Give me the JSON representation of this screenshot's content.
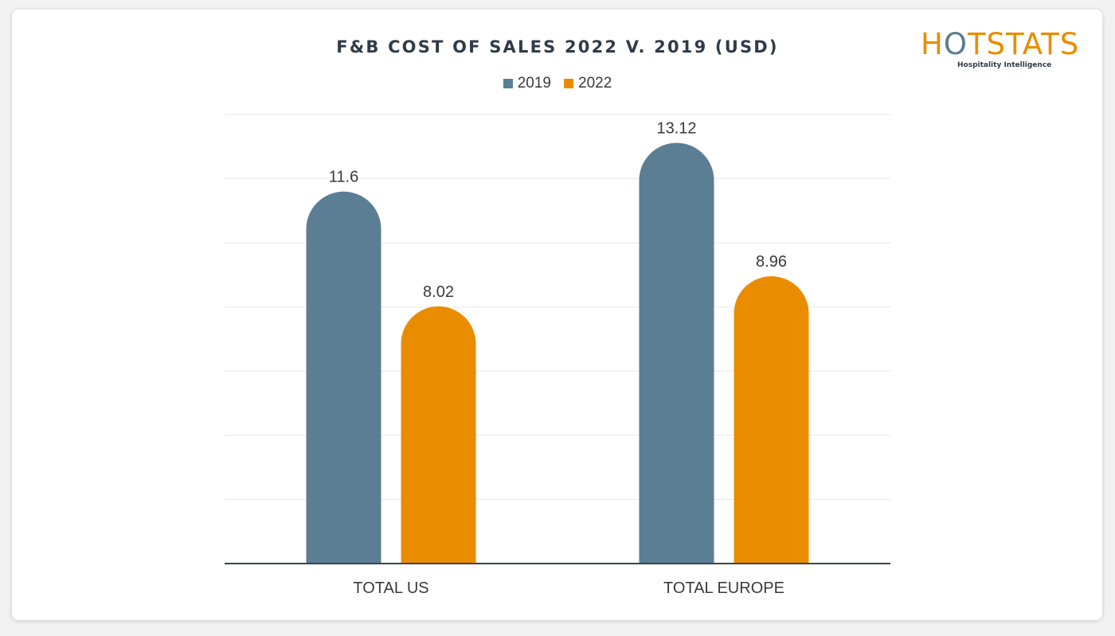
{
  "logo": {
    "word_pre": "H",
    "word_o": "O",
    "word_post": "TSTATS",
    "tagline": "Hospitality Intelligence"
  },
  "colors": {
    "series_2019": "#5b7e94",
    "series_2022": "#ea8c00",
    "grid": "#e8e8e8",
    "axis": "#3a4550"
  },
  "chart_data": {
    "type": "bar",
    "title": "F&B COST OF SALES 2022 V. 2019 (USD)",
    "categories": [
      "TOTAL US",
      "TOTAL EUROPE"
    ],
    "series": [
      {
        "name": "2019",
        "values": [
          11.6,
          13.12
        ],
        "labels": [
          "11.6",
          "13.12"
        ],
        "color": "#5b7e94"
      },
      {
        "name": "2022",
        "values": [
          8.02,
          8.96
        ],
        "labels": [
          "8.02",
          "8.96"
        ],
        "color": "#ea8c00"
      }
    ],
    "ylim": [
      0,
      14
    ],
    "grid": true,
    "legend_position": "top-center",
    "xlabel": "",
    "ylabel": ""
  }
}
